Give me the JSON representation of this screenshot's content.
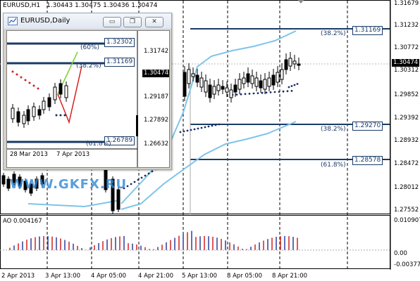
{
  "main_chart": {
    "symbol_label": "EURUSD,H1",
    "ohlc": "1.30443 1.30475 1.30436 1.30474",
    "y_ticks": [
      "1.31679",
      "1.31232",
      "1.30772",
      "1.30312",
      "1.29852",
      "1.29392",
      "1.28932",
      "1.28472",
      "1.28012",
      "1.27552"
    ],
    "current_price": "1.30474",
    "fib_levels": [
      {
        "pct": "(38.2%)",
        "value": "1.31169"
      },
      {
        "pct": "(38.2%)",
        "value": "1.29270"
      },
      {
        "pct": "(61.8%)",
        "value": "1.28578"
      }
    ],
    "x_ticks": [
      "2 Apr 2013",
      "3 Apr 13:00",
      "4 Apr 05:00",
      "4 Apr 21:00",
      "5 Apr 13:00",
      "8 Apr 05:00",
      "8 Apr 21:00"
    ],
    "watermark": "WWW.GKFX.RU"
  },
  "ao_panel": {
    "label": "AO 0.004167",
    "y_ticks": [
      "0.010907",
      "0.00",
      "-0.00377"
    ]
  },
  "sub_window": {
    "title": "EURUSD,Daily",
    "buttons": {
      "minimize": "▭",
      "restore": "❐",
      "close": "✕"
    },
    "y_ticks": [
      "1.32302",
      "1.31742",
      "1.31169",
      "1.30474",
      "1.29187",
      "1.27892",
      "1.26789",
      "1.26632"
    ],
    "fib_labels": [
      "(60%)",
      "(38.2%)",
      "(61.8%)"
    ],
    "x_ticks": [
      "28 Mar 2013",
      "7 Apr 2013"
    ]
  },
  "colors": {
    "fib_line": "#1a3a66",
    "bands": "#7ec4ea",
    "sar": "#1a2c6a",
    "ao_up": "#2a3f9e",
    "ao_down": "#d42020"
  }
}
